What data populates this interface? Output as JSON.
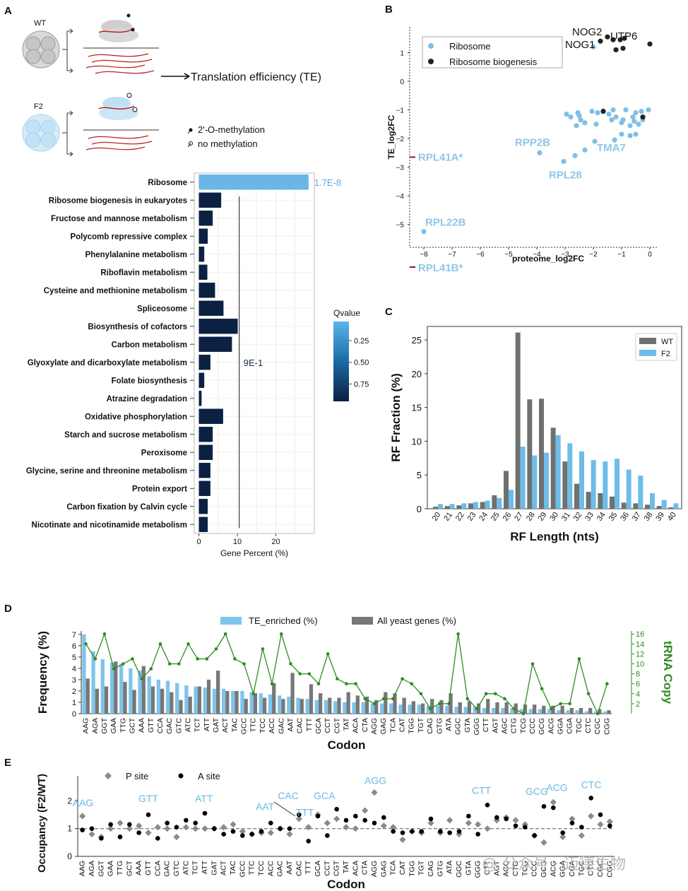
{
  "panels": {
    "A": "A",
    "B": "B",
    "C": "C",
    "D": "D",
    "E": "E"
  },
  "schematic": {
    "wt_label": "WT",
    "f2_label": "F2",
    "te_label": "Translation efficiency (TE)",
    "legend_methyl": "2'-O-methylation",
    "legend_nomethyl": "no methylation"
  },
  "watermark": "@ 公众号 · 迈德生物",
  "chart_data": [
    {
      "id": "A",
      "type": "bar",
      "orientation": "horizontal",
      "title": "",
      "xlabel": "Gene Percent (%)",
      "xlim": [
        -1.2,
        30
      ],
      "xticks": [
        0,
        10,
        20
      ],
      "xtick_labels": [
        "0",
        "10",
        "20"
      ],
      "categories": [
        "Ribosome",
        "Ribosome biogenesis in eukaryotes",
        "Fructose and mannose metabolism",
        "Polycomb repressive complex",
        "Phenylalanine metabolism",
        "Riboflavin metabolism",
        "Cysteine and methionine metabolism",
        "Spliceosome",
        "Biosynthesis of cofactors",
        "Carbon metabolism",
        "Glyoxylate and dicarboxylate metabolism",
        "Folate biosynthesis",
        "Atrazine degradation",
        "Oxidative phosphorylation",
        "Starch and sucrose metabolism",
        "Peroxisome",
        "Glycine, serine and threonine metabolism",
        "Protein export",
        "Carbon fixation by Calvin cycle",
        "Nicotinate and nicotinamide metabolism"
      ],
      "values": [
        28.5,
        5.8,
        3.6,
        2.3,
        1.4,
        2.2,
        4.2,
        6.4,
        10.1,
        8.6,
        3.0,
        1.4,
        0.7,
        6.3,
        3.6,
        3.6,
        3.0,
        3.0,
        2.3,
        2.3
      ],
      "qvalues": [
        1.7e-08,
        0.9,
        0.9,
        0.9,
        0.9,
        0.9,
        0.9,
        0.9,
        0.9,
        0.9,
        0.9,
        0.9,
        0.9,
        0.9,
        0.9,
        0.9,
        0.9,
        0.9,
        0.9,
        0.9
      ],
      "annotations": [
        {
          "text": "1.7E-8",
          "category": "Ribosome"
        },
        {
          "text": "9E-1",
          "category": "Glyoxylate and dicarboxylate metabolism"
        }
      ],
      "colorbar": {
        "title": "Qvalue",
        "ticks": [
          0.25,
          0.5,
          0.75
        ],
        "tick_labels": [
          "0.25",
          "0.50",
          "0.75"
        ],
        "color_low": "#6bb6e8",
        "color_high": "#0b2143"
      }
    },
    {
      "id": "B",
      "type": "scatter",
      "xlabel": "proteome_log2FC",
      "ylabel": "TE_log2FC",
      "xlim": [
        -8.5,
        0.3
      ],
      "ylim": [
        -5.8,
        1.9
      ],
      "xticks": [
        -8,
        -7,
        -6,
        -5,
        -4,
        -3,
        -2,
        -1,
        0
      ],
      "yticks": [
        -5,
        -4,
        -3,
        -2,
        -1,
        0,
        1
      ],
      "legend": [
        "Ribosome",
        "Ribosome biogenesis"
      ],
      "legend_position": "top-left",
      "series": [
        {
          "name": "Ribosome",
          "color": "#7ec0e6",
          "x": [
            -8.0,
            -3.9,
            -2.95,
            -2.55,
            -2.5,
            -2.3,
            -2.05,
            -1.85,
            -1.65,
            -1.45,
            -1.3,
            -0.95,
            -0.85,
            -0.6,
            -0.5,
            -0.3,
            -0.05,
            -2.8,
            -2.6,
            -2.45,
            -1.9,
            -1.35,
            -1.2,
            -1.0,
            -0.7,
            -0.55,
            -0.4,
            -0.25,
            -2.65,
            -2.3,
            -1.95,
            -1.0,
            -0.7,
            -0.5,
            -1.25,
            -3.05,
            -2.0
          ],
          "y": [
            -5.25,
            -2.5,
            -1.15,
            -1.1,
            -1.2,
            -1.45,
            -1.05,
            -1.1,
            -1.05,
            -1.15,
            -1.0,
            -1.35,
            -1.0,
            -1.25,
            -1.1,
            -1.05,
            -1.0,
            -1.25,
            -1.55,
            -1.35,
            -1.5,
            -1.35,
            -1.25,
            -1.45,
            -1.55,
            -1.4,
            -1.5,
            -1.35,
            -2.6,
            -2.4,
            -2.1,
            -1.85,
            -1.9,
            -1.85,
            -2.05,
            -2.8,
            1.2
          ],
          "labels": [
            {
              "text": "RPL22B",
              "x": -8.0,
              "y": -5.25
            },
            {
              "text": "RPP2B",
              "x": -3.9,
              "y": -2.5
            },
            {
              "text": "RPL28",
              "x": -2.95,
              "y": -2.8
            },
            {
              "text": "TMA7",
              "x": -1.25,
              "y": -2.05
            },
            {
              "text": "RPL41A*",
              "x": -8.4,
              "y": -2.65
            },
            {
              "text": "RPL41B*",
              "x": -8.4,
              "y": -6.5
            }
          ]
        },
        {
          "name": "Ribosome biogenesis",
          "color": "#222222",
          "x": [
            -1.75,
            -1.5,
            -1.3,
            -1.05,
            -0.9,
            -1.2,
            -0.95,
            0.0,
            -1.65,
            -0.25
          ],
          "y": [
            1.4,
            1.55,
            1.45,
            1.45,
            1.5,
            1.1,
            1.15,
            1.3,
            -1.05,
            -1.25
          ],
          "labels": [
            {
              "text": "NOG2",
              "x": -1.6,
              "y": 1.6
            },
            {
              "text": "NOG1",
              "x": -1.75,
              "y": 1.4
            },
            {
              "text": "UTP6",
              "x": -1.05,
              "y": 1.55
            }
          ]
        }
      ]
    },
    {
      "id": "C",
      "type": "bar",
      "xlabel": "RF Length (nts)",
      "ylabel": "RF Fraction (%)",
      "ylim": [
        0,
        27
      ],
      "yticks": [
        0,
        5,
        10,
        15,
        20,
        25
      ],
      "legend_position": "top-right",
      "categories": [
        "20",
        "21",
        "22",
        "23",
        "24",
        "25",
        "26",
        "27",
        "28",
        "29",
        "30",
        "31",
        "32",
        "33",
        "34",
        "35",
        "36",
        "37",
        "38",
        "39",
        "40"
      ],
      "series": [
        {
          "name": "WT",
          "color": "#707070",
          "values": [
            0.3,
            0.4,
            0.5,
            0.8,
            1.0,
            2.0,
            5.6,
            26.1,
            16.2,
            16.3,
            12.0,
            7.0,
            3.7,
            2.5,
            2.3,
            1.8,
            0.9,
            0.8,
            0.6,
            0.4,
            0.2
          ]
        },
        {
          "name": "F2",
          "color": "#6dbde8",
          "values": [
            0.7,
            0.7,
            0.8,
            1.0,
            1.2,
            1.6,
            2.8,
            9.2,
            7.9,
            8.3,
            10.9,
            9.7,
            8.5,
            7.2,
            7.0,
            7.4,
            5.8,
            4.9,
            2.3,
            1.3,
            0.8
          ]
        }
      ]
    },
    {
      "id": "D",
      "type": "bar",
      "xlabel": "Codon",
      "ylabel": "Frequency (%)",
      "y2label": "tRNA Copy",
      "ylim": [
        0,
        7.3
      ],
      "yticks": [
        0,
        1,
        2,
        3,
        4,
        5,
        6,
        7
      ],
      "y2lim": [
        0,
        16.6
      ],
      "y2ticks": [
        2,
        4,
        6,
        8,
        10,
        12,
        14,
        16
      ],
      "categories": [
        "AAG",
        "AGA",
        "GGT",
        "GAA",
        "TTG",
        "GCT",
        "AAA",
        "GTT",
        "CCA",
        "GAC",
        "GTC",
        "ATC",
        "TCT",
        "ATT",
        "GAT",
        "ACT",
        "TAC",
        "GCC",
        "TTC",
        "TCC",
        "ACC",
        "GAC",
        "AAT",
        "CAC",
        "TTT",
        "GCA",
        "CCT",
        "CGT",
        "TAT",
        "ACA",
        "CTA",
        "AGG",
        "GAG",
        "TCA",
        "CAT",
        "TGG",
        "TGT",
        "CAG",
        "GTG",
        "ATA",
        "GGC",
        "GTA",
        "GGG",
        "CTT",
        "AGT",
        "AGC",
        "CTG",
        "TCG",
        "CCC",
        "GCG",
        "ACG",
        "GGA",
        "CGA",
        "TGC",
        "CTC",
        "CGC",
        "CGG"
      ],
      "series": [
        {
          "name": "TE_enriched (%)",
          "color": "#7ec4ea",
          "values": [
            7.0,
            5.5,
            4.8,
            4.5,
            4.4,
            4.0,
            3.8,
            3.3,
            3.0,
            2.9,
            2.7,
            2.5,
            2.4,
            2.3,
            2.2,
            2.2,
            2.0,
            2.0,
            1.9,
            1.8,
            1.7,
            1.6,
            1.5,
            1.4,
            1.3,
            1.2,
            1.2,
            1.1,
            1.0,
            1.0,
            1.0,
            0.9,
            0.9,
            0.9,
            0.8,
            0.8,
            0.8,
            0.7,
            0.7,
            0.7,
            0.6,
            0.6,
            0.6,
            0.5,
            0.5,
            0.5,
            0.5,
            0.4,
            0.4,
            0.4,
            0.4,
            0.3,
            0.3,
            0.3,
            0.2,
            0.2,
            0.2
          ]
        },
        {
          "name": "All yeast genes (%)",
          "color": "#777777",
          "values": [
            3.1,
            2.2,
            2.4,
            4.6,
            2.8,
            2.1,
            4.2,
            2.4,
            2.2,
            1.9,
            1.2,
            1.5,
            2.4,
            3.0,
            3.8,
            2.0,
            2.0,
            1.3,
            1.8,
            1.4,
            2.7,
            1.3,
            3.6,
            1.3,
            2.6,
            1.8,
            1.4,
            1.4,
            1.9,
            1.6,
            1.5,
            1.2,
            1.9,
            1.8,
            1.4,
            1.1,
            0.9,
            1.3,
            1.2,
            1.8,
            1.0,
            1.1,
            0.9,
            1.3,
            1.0,
            1.0,
            0.9,
            0.8,
            0.8,
            0.7,
            0.7,
            0.7,
            0.5,
            0.5,
            0.5,
            0.4,
            0.3
          ]
        },
        {
          "name": "tRNA Copy",
          "color": "#2e8b22",
          "axis": "y2",
          "values": [
            14,
            11,
            16,
            9,
            10,
            11,
            7,
            9,
            14,
            10,
            10,
            14,
            11,
            11,
            13,
            16,
            11,
            10,
            4,
            13,
            6,
            16,
            10,
            8,
            8,
            6,
            12,
            7,
            6,
            6,
            3,
            2,
            3,
            3,
            7,
            6,
            4,
            1,
            2,
            2,
            16,
            3,
            1,
            4,
            4,
            3,
            1,
            0,
            10,
            5,
            1,
            2,
            2,
            11,
            4,
            0,
            6
          ]
        }
      ],
      "legend": [
        "TE_enriched (%)",
        "All yeast genes (%)"
      ],
      "legend_position": "top"
    },
    {
      "id": "E",
      "type": "scatter",
      "xlabel": "Codon",
      "ylabel": "Occupancy (F2/WT)",
      "ylim": [
        0,
        2.9
      ],
      "yticks": [
        0,
        1,
        2
      ],
      "reference_line": 1,
      "legend": [
        "P site",
        "A site"
      ],
      "legend_position": "top-left",
      "categories": [
        "AAG",
        "AGA",
        "GGT",
        "GAA",
        "TTG",
        "GCT",
        "AAA",
        "GTT",
        "CCA",
        "GAC",
        "GTC",
        "ATC",
        "TCT",
        "ATT",
        "GAT",
        "ACT",
        "TAC",
        "GCC",
        "TTC",
        "TCC",
        "ACC",
        "GAC",
        "AAT",
        "CAC",
        "TTT",
        "GCA",
        "CCT",
        "CGT",
        "TAT",
        "ACA",
        "CTA",
        "AGG",
        "GAG",
        "TCA",
        "CAT",
        "TGG",
        "TGT",
        "CAG",
        "GTG",
        "ATA",
        "GGC",
        "GTA",
        "GGG",
        "CTT",
        "AGT",
        "AGC",
        "CTG",
        "TCG",
        "CCC",
        "GCG",
        "ACG",
        "GGA",
        "CGA",
        "TGC",
        "CTC",
        "CGC",
        "CGG"
      ],
      "series": [
        {
          "name": "P site",
          "color": "#8a8a8a",
          "values": [
            1.45,
            0.8,
            0.7,
            1.0,
            1.2,
            1.0,
            1.1,
            0.85,
            1.05,
            1.0,
            0.7,
            1.05,
            1.0,
            1.0,
            1.0,
            1.05,
            1.15,
            0.9,
            0.8,
            0.85,
            0.85,
            1.0,
            0.8,
            1.35,
            1.05,
            1.5,
            1.2,
            1.35,
            1.05,
            1.0,
            1.65,
            2.3,
            1.1,
            1.05,
            0.6,
            0.9,
            0.85,
            1.2,
            0.85,
            1.3,
            0.8,
            1.2,
            1.15,
            1.0,
            1.3,
            1.4,
            1.3,
            1.15,
            0.75,
            0.5,
            1.95,
            0.7,
            1.35,
            0.75,
            1.45,
            1.15,
            1.25
          ]
        },
        {
          "name": "A site",
          "color": "#000000",
          "values": [
            0.95,
            1.0,
            0.65,
            1.15,
            0.7,
            1.15,
            0.85,
            1.5,
            0.65,
            1.2,
            1.05,
            1.3,
            1.2,
            1.55,
            1.0,
            0.8,
            0.9,
            0.75,
            0.8,
            0.9,
            1.2,
            1.0,
            1.0,
            1.5,
            0.55,
            1.45,
            0.75,
            1.7,
            1.3,
            1.45,
            1.3,
            1.2,
            1.4,
            0.9,
            0.85,
            0.9,
            0.9,
            1.35,
            0.9,
            0.85,
            0.9,
            1.45,
            0.8,
            1.85,
            1.4,
            1.35,
            1.1,
            1.05,
            0.75,
            1.8,
            1.75,
            0.85,
            1.2,
            1.05,
            2.1,
            1.5,
            1.1
          ]
        }
      ],
      "labels": [
        {
          "text": "AAG",
          "category": "AAG"
        },
        {
          "text": "GTT",
          "category": "GTT"
        },
        {
          "text": "ATT",
          "category": "ATT"
        },
        {
          "text": "AAT",
          "category": "AAT"
        },
        {
          "text": "CAC",
          "category": "CAC"
        },
        {
          "text": "TTT",
          "category": "TTT"
        },
        {
          "text": "GCA",
          "category": "GCA"
        },
        {
          "text": "AGG",
          "category": "AGG"
        },
        {
          "text": "CTT",
          "category": "CTT"
        },
        {
          "text": "GCG",
          "category": "GCG"
        },
        {
          "text": "ACG",
          "category": "ACG"
        },
        {
          "text": "CTC",
          "category": "CTC"
        }
      ]
    }
  ]
}
